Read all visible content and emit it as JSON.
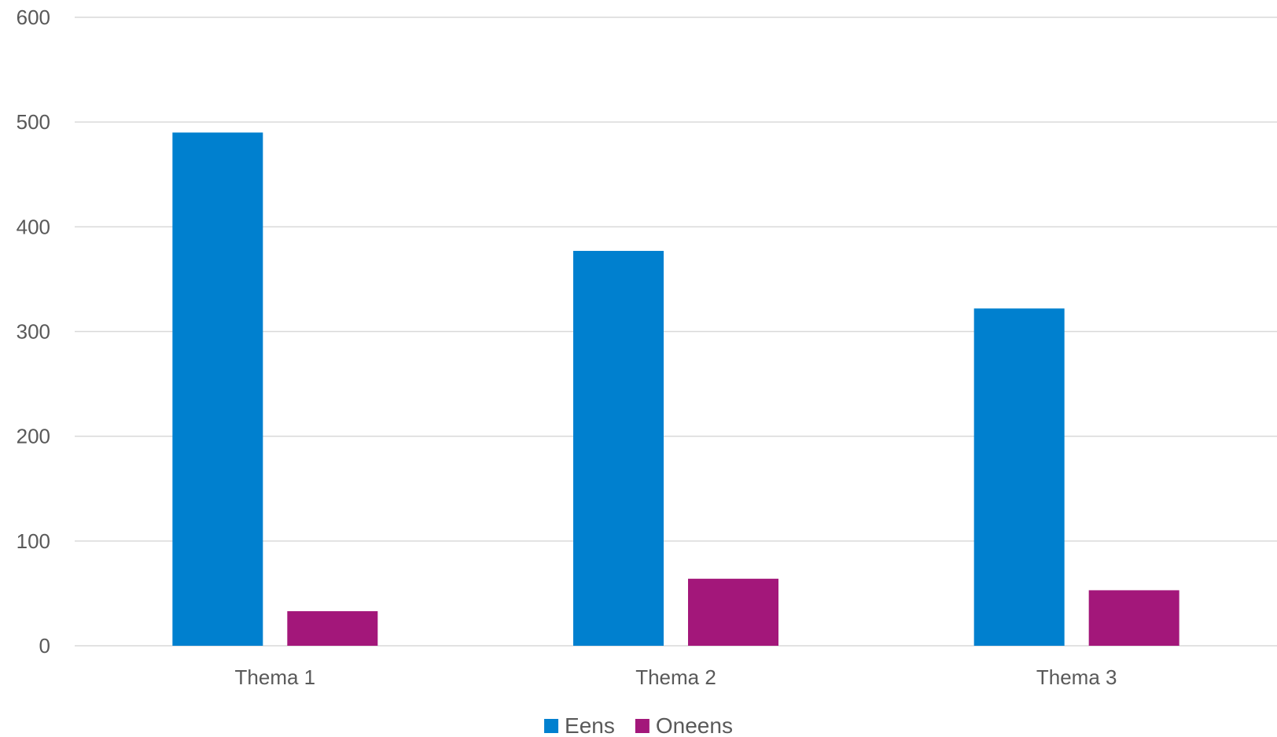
{
  "chart_data": {
    "type": "bar",
    "title": "",
    "xlabel": "",
    "ylabel": "",
    "categories": [
      "Thema 1",
      "Thema 2",
      "Thema 3"
    ],
    "series": [
      {
        "name": "Eens",
        "color": "#0080CF",
        "values": [
          490,
          377,
          322
        ]
      },
      {
        "name": "Oneens",
        "color": "#A3177A",
        "values": [
          33,
          64,
          53
        ]
      }
    ],
    "ylim": [
      0,
      600
    ],
    "yticks": [
      "0",
      "100",
      "200",
      "300",
      "400",
      "500",
      "600"
    ],
    "grid": true,
    "legend_position": "bottom-center"
  }
}
